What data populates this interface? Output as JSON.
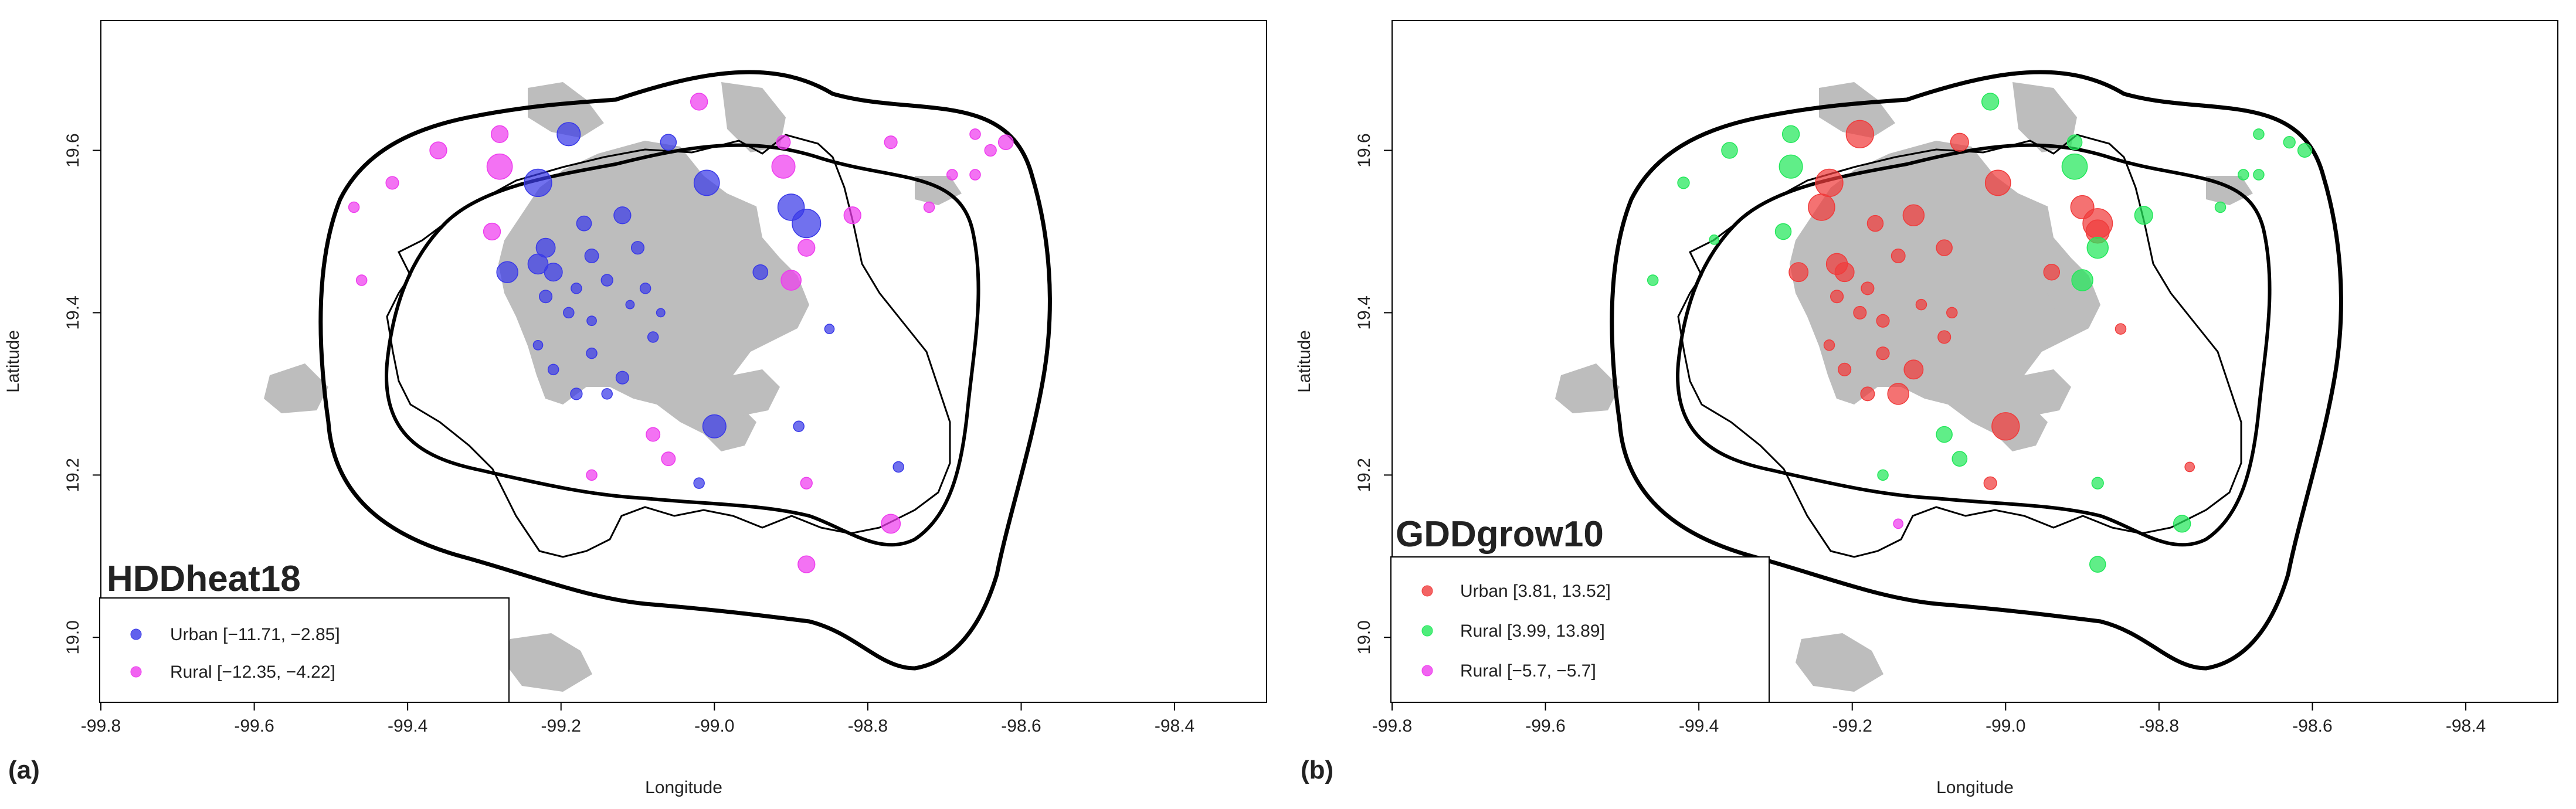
{
  "panels": [
    {
      "panel_label": "(a)",
      "title": "HDDheat18",
      "legend": [
        {
          "label": "Urban [−11.71, −2.85]",
          "color": "#3a3ae8"
        },
        {
          "label": "Rural [−12.35, −4.22]",
          "color": "#ee3cee"
        }
      ]
    },
    {
      "panel_label": "(b)",
      "title": "GDDgrow10",
      "legend": [
        {
          "label": "Urban [3.81, 13.52]",
          "color": "#f03c3c"
        },
        {
          "label": "Rural [3.99, 13.89]",
          "color": "#22e85a"
        },
        {
          "label": "Rural [−5.7, −5.7]",
          "color": "#ee3cee"
        }
      ]
    }
  ],
  "chart_data": [
    {
      "type": "scatter",
      "title": "HDDheat18",
      "xlabel": "Longitude",
      "ylabel": "Latitude",
      "xlim": [
        -99.8,
        -98.28
      ],
      "ylim": [
        18.92,
        19.76
      ],
      "xticks": [
        "-99.8",
        "-99.6",
        "-99.4",
        "-99.2",
        "-99.0",
        "-98.8",
        "-98.6",
        "-98.4"
      ],
      "yticks": [
        "19.0",
        "19.2",
        "19.4",
        "19.6"
      ],
      "series": [
        {
          "name": "Urban [−11.71, −2.85]",
          "color": "#3a3ae8",
          "points": [
            {
              "lon": -99.19,
              "lat": 19.62,
              "size": 2.2
            },
            {
              "lon": -99.06,
              "lat": 19.61,
              "size": 1.5
            },
            {
              "lon": -99.23,
              "lat": 19.56,
              "size": 2.6
            },
            {
              "lon": -99.01,
              "lat": 19.56,
              "size": 2.4
            },
            {
              "lon": -99.17,
              "lat": 19.51,
              "size": 1.4
            },
            {
              "lon": -99.12,
              "lat": 19.52,
              "size": 1.6
            },
            {
              "lon": -98.9,
              "lat": 19.53,
              "size": 2.5
            },
            {
              "lon": -98.88,
              "lat": 19.51,
              "size": 2.7
            },
            {
              "lon": -99.22,
              "lat": 19.48,
              "size": 1.8
            },
            {
              "lon": -99.16,
              "lat": 19.47,
              "size": 1.3
            },
            {
              "lon": -99.1,
              "lat": 19.48,
              "size": 1.2
            },
            {
              "lon": -99.27,
              "lat": 19.45,
              "size": 2.0
            },
            {
              "lon": -99.23,
              "lat": 19.46,
              "size": 1.9
            },
            {
              "lon": -99.21,
              "lat": 19.45,
              "size": 1.7
            },
            {
              "lon": -99.14,
              "lat": 19.44,
              "size": 1.1
            },
            {
              "lon": -98.94,
              "lat": 19.45,
              "size": 1.4
            },
            {
              "lon": -99.22,
              "lat": 19.42,
              "size": 1.2
            },
            {
              "lon": -99.18,
              "lat": 19.43,
              "size": 1.0
            },
            {
              "lon": -99.09,
              "lat": 19.43,
              "size": 1.0
            },
            {
              "lon": -99.19,
              "lat": 19.4,
              "size": 1.0
            },
            {
              "lon": -99.16,
              "lat": 19.39,
              "size": 0.9
            },
            {
              "lon": -99.11,
              "lat": 19.41,
              "size": 0.8
            },
            {
              "lon": -99.07,
              "lat": 19.4,
              "size": 0.8
            },
            {
              "lon": -99.23,
              "lat": 19.36,
              "size": 0.9
            },
            {
              "lon": -99.16,
              "lat": 19.35,
              "size": 1.0
            },
            {
              "lon": -99.08,
              "lat": 19.37,
              "size": 1.0
            },
            {
              "lon": -99.21,
              "lat": 19.33,
              "size": 1.0
            },
            {
              "lon": -99.12,
              "lat": 19.32,
              "size": 1.2
            },
            {
              "lon": -99.18,
              "lat": 19.3,
              "size": 1.1
            },
            {
              "lon": -99.14,
              "lat": 19.3,
              "size": 1.0
            },
            {
              "lon": -99.0,
              "lat": 19.26,
              "size": 2.2
            },
            {
              "lon": -98.89,
              "lat": 19.26,
              "size": 1.0
            },
            {
              "lon": -98.85,
              "lat": 19.38,
              "size": 0.9
            },
            {
              "lon": -98.76,
              "lat": 19.21,
              "size": 1.0
            },
            {
              "lon": -99.02,
              "lat": 19.19,
              "size": 1.0
            }
          ]
        },
        {
          "name": "Rural [−12.35, −4.22]",
          "color": "#ee3cee",
          "points": [
            {
              "lon": -99.28,
              "lat": 19.62,
              "size": 1.6
            },
            {
              "lon": -99.02,
              "lat": 19.66,
              "size": 1.6
            },
            {
              "lon": -98.91,
              "lat": 19.61,
              "size": 1.3
            },
            {
              "lon": -98.77,
              "lat": 19.61,
              "size": 1.2
            },
            {
              "lon": -98.66,
              "lat": 19.62,
              "size": 1.0
            },
            {
              "lon": -98.62,
              "lat": 19.61,
              "size": 1.4
            },
            {
              "lon": -98.64,
              "lat": 19.6,
              "size": 1.1
            },
            {
              "lon": -98.69,
              "lat": 19.57,
              "size": 1.0
            },
            {
              "lon": -98.66,
              "lat": 19.57,
              "size": 1.0
            },
            {
              "lon": -99.36,
              "lat": 19.6,
              "size": 1.6
            },
            {
              "lon": -99.28,
              "lat": 19.58,
              "size": 2.4
            },
            {
              "lon": -98.91,
              "lat": 19.58,
              "size": 2.2
            },
            {
              "lon": -99.42,
              "lat": 19.56,
              "size": 1.2
            },
            {
              "lon": -99.47,
              "lat": 19.53,
              "size": 1.0
            },
            {
              "lon": -98.82,
              "lat": 19.52,
              "size": 1.6
            },
            {
              "lon": -98.72,
              "lat": 19.53,
              "size": 1.0
            },
            {
              "lon": -99.29,
              "lat": 19.5,
              "size": 1.6
            },
            {
              "lon": -98.88,
              "lat": 19.48,
              "size": 1.6
            },
            {
              "lon": -99.46,
              "lat": 19.44,
              "size": 1.0
            },
            {
              "lon": -98.9,
              "lat": 19.44,
              "size": 1.9
            },
            {
              "lon": -99.08,
              "lat": 19.25,
              "size": 1.3
            },
            {
              "lon": -99.06,
              "lat": 19.22,
              "size": 1.3
            },
            {
              "lon": -98.88,
              "lat": 19.19,
              "size": 1.1
            },
            {
              "lon": -99.16,
              "lat": 19.2,
              "size": 1.0
            },
            {
              "lon": -98.77,
              "lat": 19.14,
              "size": 1.8
            },
            {
              "lon": -98.88,
              "lat": 19.09,
              "size": 1.6
            }
          ]
        }
      ]
    },
    {
      "type": "scatter",
      "title": "GDDgrow10",
      "xlabel": "Longitude",
      "ylabel": "Latitude",
      "xlim": [
        -99.8,
        -98.28
      ],
      "ylim": [
        18.92,
        19.76
      ],
      "xticks": [
        "-99.8",
        "-99.6",
        "-99.4",
        "-99.2",
        "-99.0",
        "-98.8",
        "-98.6",
        "-98.4"
      ],
      "yticks": [
        "19.0",
        "19.2",
        "19.4",
        "19.6"
      ],
      "series": [
        {
          "name": "Urban [3.81, 13.52]",
          "color": "#f03c3c",
          "points": [
            {
              "lon": -99.19,
              "lat": 19.62,
              "size": 2.6
            },
            {
              "lon": -99.06,
              "lat": 19.61,
              "size": 1.7
            },
            {
              "lon": -99.23,
              "lat": 19.56,
              "size": 2.6
            },
            {
              "lon": -99.01,
              "lat": 19.56,
              "size": 2.4
            },
            {
              "lon": -99.24,
              "lat": 19.53,
              "size": 2.5
            },
            {
              "lon": -99.17,
              "lat": 19.51,
              "size": 1.5
            },
            {
              "lon": -99.12,
              "lat": 19.52,
              "size": 2.0
            },
            {
              "lon": -98.9,
              "lat": 19.53,
              "size": 2.2
            },
            {
              "lon": -98.88,
              "lat": 19.51,
              "size": 2.8
            },
            {
              "lon": -98.88,
              "lat": 19.5,
              "size": 2.2
            },
            {
              "lon": -99.27,
              "lat": 19.45,
              "size": 1.8
            },
            {
              "lon": -99.22,
              "lat": 19.46,
              "size": 2.0
            },
            {
              "lon": -99.21,
              "lat": 19.45,
              "size": 1.8
            },
            {
              "lon": -99.14,
              "lat": 19.47,
              "size": 1.3
            },
            {
              "lon": -99.08,
              "lat": 19.48,
              "size": 1.5
            },
            {
              "lon": -98.94,
              "lat": 19.45,
              "size": 1.5
            },
            {
              "lon": -99.18,
              "lat": 19.43,
              "size": 1.2
            },
            {
              "lon": -99.22,
              "lat": 19.42,
              "size": 1.2
            },
            {
              "lon": -99.19,
              "lat": 19.4,
              "size": 1.2
            },
            {
              "lon": -99.16,
              "lat": 19.39,
              "size": 1.2
            },
            {
              "lon": -99.11,
              "lat": 19.41,
              "size": 1.0
            },
            {
              "lon": -99.07,
              "lat": 19.4,
              "size": 1.0
            },
            {
              "lon": -99.23,
              "lat": 19.36,
              "size": 1.0
            },
            {
              "lon": -99.16,
              "lat": 19.35,
              "size": 1.2
            },
            {
              "lon": -99.08,
              "lat": 19.37,
              "size": 1.2
            },
            {
              "lon": -99.21,
              "lat": 19.33,
              "size": 1.2
            },
            {
              "lon": -99.12,
              "lat": 19.33,
              "size": 1.8
            },
            {
              "lon": -99.18,
              "lat": 19.3,
              "size": 1.3
            },
            {
              "lon": -99.14,
              "lat": 19.3,
              "size": 2.0
            },
            {
              "lon": -99.0,
              "lat": 19.26,
              "size": 2.6
            },
            {
              "lon": -98.85,
              "lat": 19.38,
              "size": 1.0
            },
            {
              "lon": -99.02,
              "lat": 19.19,
              "size": 1.2
            },
            {
              "lon": -98.76,
              "lat": 19.21,
              "size": 0.9
            }
          ]
        },
        {
          "name": "Rural [3.99, 13.89]",
          "color": "#22e85a",
          "points": [
            {
              "lon": -99.28,
              "lat": 19.62,
              "size": 1.6
            },
            {
              "lon": -99.02,
              "lat": 19.66,
              "size": 1.6
            },
            {
              "lon": -98.91,
              "lat": 19.61,
              "size": 1.4
            },
            {
              "lon": -98.67,
              "lat": 19.62,
              "size": 1.0
            },
            {
              "lon": -98.63,
              "lat": 19.61,
              "size": 1.1
            },
            {
              "lon": -98.61,
              "lat": 19.6,
              "size": 1.3
            },
            {
              "lon": -98.67,
              "lat": 19.57,
              "size": 1.0
            },
            {
              "lon": -98.69,
              "lat": 19.57,
              "size": 1.0
            },
            {
              "lon": -99.36,
              "lat": 19.6,
              "size": 1.5
            },
            {
              "lon": -99.28,
              "lat": 19.58,
              "size": 2.2
            },
            {
              "lon": -98.91,
              "lat": 19.58,
              "size": 2.4
            },
            {
              "lon": -99.42,
              "lat": 19.56,
              "size": 1.1
            },
            {
              "lon": -98.82,
              "lat": 19.52,
              "size": 1.7
            },
            {
              "lon": -98.72,
              "lat": 19.53,
              "size": 1.0
            },
            {
              "lon": -99.29,
              "lat": 19.5,
              "size": 1.5
            },
            {
              "lon": -99.38,
              "lat": 19.49,
              "size": 0.9
            },
            {
              "lon": -98.88,
              "lat": 19.48,
              "size": 2.0
            },
            {
              "lon": -99.46,
              "lat": 19.44,
              "size": 1.0
            },
            {
              "lon": -98.9,
              "lat": 19.44,
              "size": 2.0
            },
            {
              "lon": -99.08,
              "lat": 19.25,
              "size": 1.5
            },
            {
              "lon": -99.06,
              "lat": 19.22,
              "size": 1.4
            },
            {
              "lon": -98.88,
              "lat": 19.19,
              "size": 1.1
            },
            {
              "lon": -99.16,
              "lat": 19.2,
              "size": 1.0
            },
            {
              "lon": -98.77,
              "lat": 19.14,
              "size": 1.6
            },
            {
              "lon": -98.88,
              "lat": 19.09,
              "size": 1.5
            }
          ]
        },
        {
          "name": "Rural [−5.7, −5.7]",
          "color": "#ee3cee",
          "points": [
            {
              "lon": -99.14,
              "lat": 19.14,
              "size": 0.9
            }
          ]
        }
      ]
    }
  ]
}
